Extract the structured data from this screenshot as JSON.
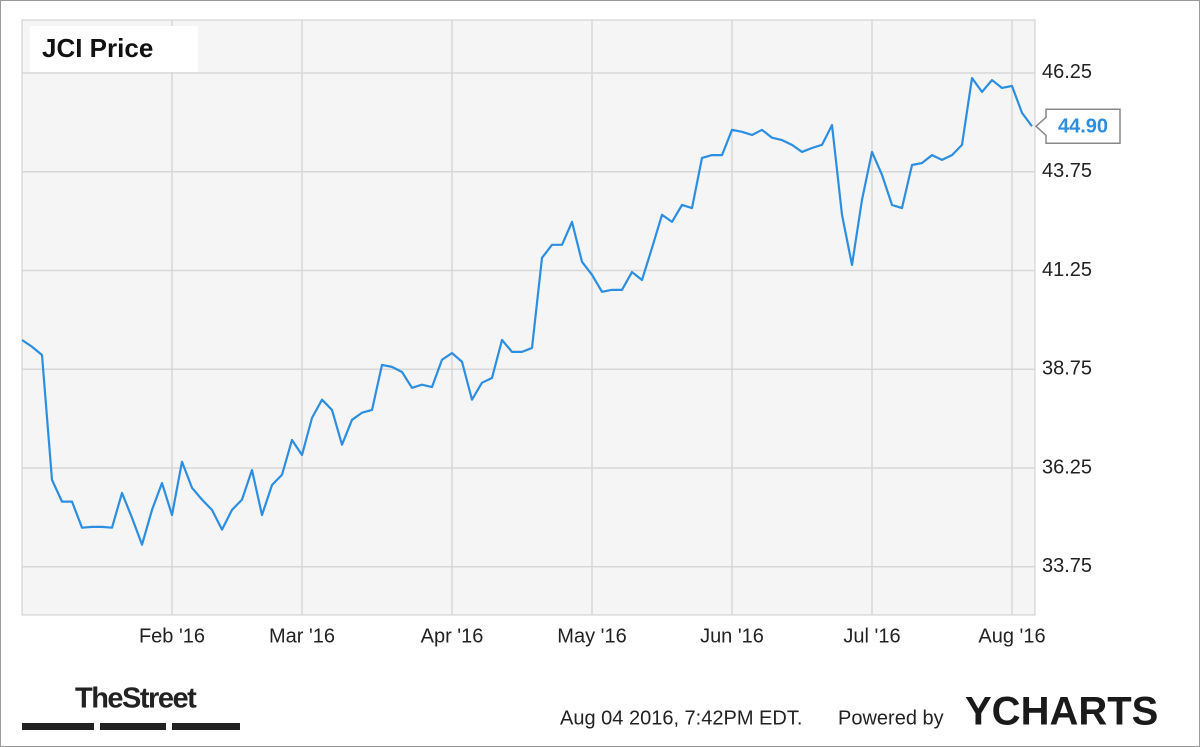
{
  "chart_data": {
    "type": "line",
    "title": "JCI Price",
    "categories": [
      null,
      null,
      null,
      null,
      null,
      null,
      null,
      null,
      null,
      null,
      null,
      null,
      null,
      null,
      null,
      "Feb '16",
      null,
      null,
      null,
      null,
      null,
      null,
      null,
      null,
      null,
      null,
      null,
      null,
      "Mar '16",
      null,
      null,
      null,
      null,
      null,
      null,
      null,
      null,
      null,
      null,
      null,
      null,
      null,
      null,
      "Apr '16",
      null,
      null,
      null,
      null,
      null,
      null,
      null,
      null,
      null,
      null,
      null,
      null,
      null,
      "May '16",
      null,
      null,
      null,
      null,
      null,
      null,
      null,
      null,
      null,
      null,
      null,
      null,
      null,
      "Jun '16",
      null,
      null,
      null,
      null,
      null,
      null,
      null,
      null,
      null,
      null,
      null,
      null,
      null,
      "Jul '16",
      null,
      null,
      null,
      null,
      null,
      null,
      null,
      null,
      null,
      null,
      null,
      null,
      null,
      "Aug '16",
      null,
      null
    ],
    "series": [
      {
        "name": "JCI Price",
        "color": "#2b8ee0",
        "values": [
          39.49,
          39.32,
          39.11,
          35.95,
          35.4,
          35.4,
          34.74,
          34.76,
          34.76,
          34.74,
          35.62,
          34.99,
          34.31,
          35.19,
          35.87,
          35.06,
          36.41,
          35.75,
          35.45,
          35.19,
          34.69,
          35.19,
          35.45,
          36.2,
          35.06,
          35.82,
          36.08,
          36.96,
          36.58,
          37.52,
          37.98,
          37.72,
          36.84,
          37.47,
          37.65,
          37.72,
          38.86,
          38.81,
          38.68,
          38.28,
          38.36,
          38.3,
          38.99,
          39.16,
          38.94,
          37.98,
          38.41,
          38.53,
          39.49,
          39.19,
          39.19,
          39.29,
          41.57,
          41.9,
          41.9,
          42.48,
          41.47,
          41.14,
          40.71,
          40.76,
          40.76,
          41.21,
          41.01,
          41.82,
          42.66,
          42.48,
          42.91,
          42.83,
          44.1,
          44.17,
          44.17,
          44.81,
          44.76,
          44.68,
          44.81,
          44.61,
          44.55,
          44.43,
          44.25,
          44.35,
          44.43,
          44.93,
          42.66,
          41.39,
          43.04,
          44.25,
          43.67,
          42.91,
          42.83,
          43.92,
          43.97,
          44.17,
          44.05,
          44.17,
          44.43,
          46.12,
          45.77,
          46.07,
          45.87,
          45.92,
          45.24,
          44.9
        ]
      }
    ],
    "last_price": {
      "value": 44.9,
      "label": "44.90"
    },
    "ylim": [
      32.53,
      47.59
    ],
    "yticks": [
      33.75,
      36.25,
      38.75,
      41.25,
      43.75,
      46.25
    ],
    "grid": true
  },
  "footer": {
    "publisher": "TheStreet",
    "timestamp": "Aug 04 2016, 7:42PM EDT.",
    "powered_by": "Powered by",
    "brand": "YCHARTS"
  }
}
